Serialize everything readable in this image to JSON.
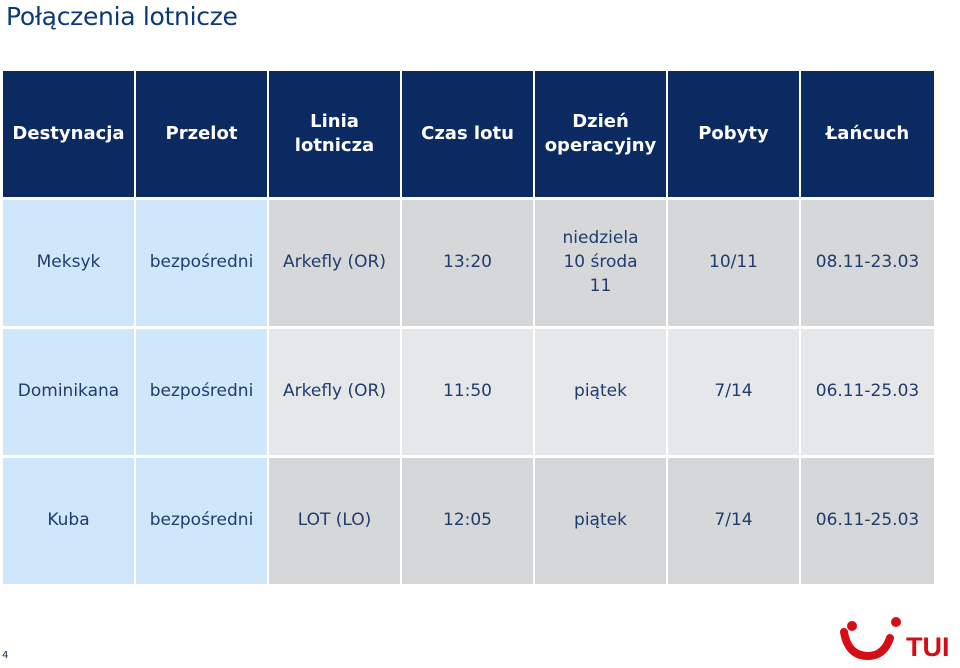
{
  "page": {
    "title": "Połączenia lotnicze",
    "page_number": "4"
  },
  "table": {
    "headers": [
      "Destynacja",
      "Przelot",
      "Linia lotnicza",
      "Czas lotu",
      "Dzień operacyjny",
      "Pobyty",
      "Łańcuch"
    ],
    "rows": [
      [
        "Meksyk",
        "bezpośredni",
        "Arkefly (OR)",
        "13:20",
        "niedziela 10 środa 11",
        "10/11",
        "08.11-23.03"
      ],
      [
        "Dominikana",
        "bezpośredni",
        "Arkefly (OR)",
        "11:50",
        "piątek",
        "7/14",
        "06.11-25.03"
      ],
      [
        "Kuba",
        "bezpośredni",
        "LOT (LO)",
        "12:05",
        "piątek",
        "7/14",
        "06.11-25.03"
      ]
    ]
  },
  "logo": {
    "text": "TUI",
    "color": "#d40e14"
  },
  "colors": {
    "header_bg": "#0b2a62",
    "first_cols_bg": "#cfe6fb",
    "grey_bg": "#d6d7d9",
    "pale_bg": "#e6e7e8",
    "text": "#1f3c6e"
  }
}
